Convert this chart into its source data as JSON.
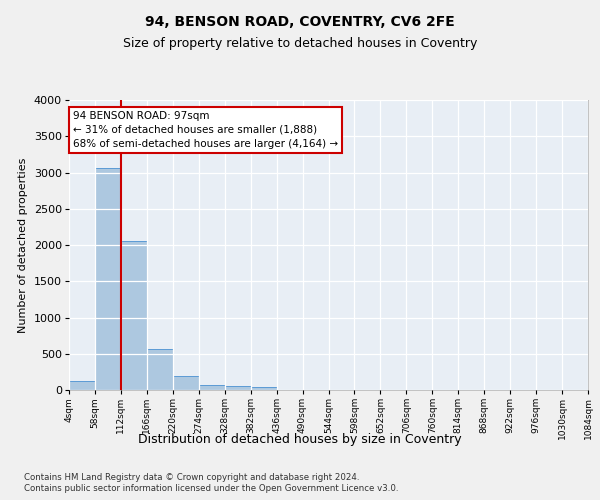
{
  "title": "94, BENSON ROAD, COVENTRY, CV6 2FE",
  "subtitle": "Size of property relative to detached houses in Coventry",
  "xlabel": "Distribution of detached houses by size in Coventry",
  "ylabel": "Number of detached properties",
  "bar_values": [
    130,
    3060,
    2060,
    560,
    195,
    75,
    50,
    35,
    0,
    0,
    0,
    0,
    0,
    0,
    0,
    0,
    0,
    0,
    0,
    0
  ],
  "x_labels": [
    "4sqm",
    "58sqm",
    "112sqm",
    "166sqm",
    "220sqm",
    "274sqm",
    "328sqm",
    "382sqm",
    "436sqm",
    "490sqm",
    "544sqm",
    "598sqm",
    "652sqm",
    "706sqm",
    "760sqm",
    "814sqm",
    "868sqm",
    "922sqm",
    "976sqm",
    "1030sqm",
    "1084sqm"
  ],
  "bar_color": "#adc8e0",
  "bar_edge_color": "#5b9bd5",
  "plot_bg_color": "#e8eef5",
  "fig_bg_color": "#f0f0f0",
  "grid_color": "#ffffff",
  "vline_color": "#cc0000",
  "ylim_max": 4000,
  "yticks": [
    0,
    500,
    1000,
    1500,
    2000,
    2500,
    3000,
    3500,
    4000
  ],
  "annotation_line1": "94 BENSON ROAD: 97sqm",
  "annotation_line2": "← 31% of detached houses are smaller (1,888)",
  "annotation_line3": "68% of semi-detached houses are larger (4,164) →",
  "ann_box_color": "#cc0000",
  "footer_line1": "Contains HM Land Registry data © Crown copyright and database right 2024.",
  "footer_line2": "Contains public sector information licensed under the Open Government Licence v3.0.",
  "title_fontsize": 10,
  "subtitle_fontsize": 9,
  "ylabel_fontsize": 8,
  "xlabel_fontsize": 9,
  "ytick_fontsize": 8,
  "xtick_fontsize": 6.5
}
